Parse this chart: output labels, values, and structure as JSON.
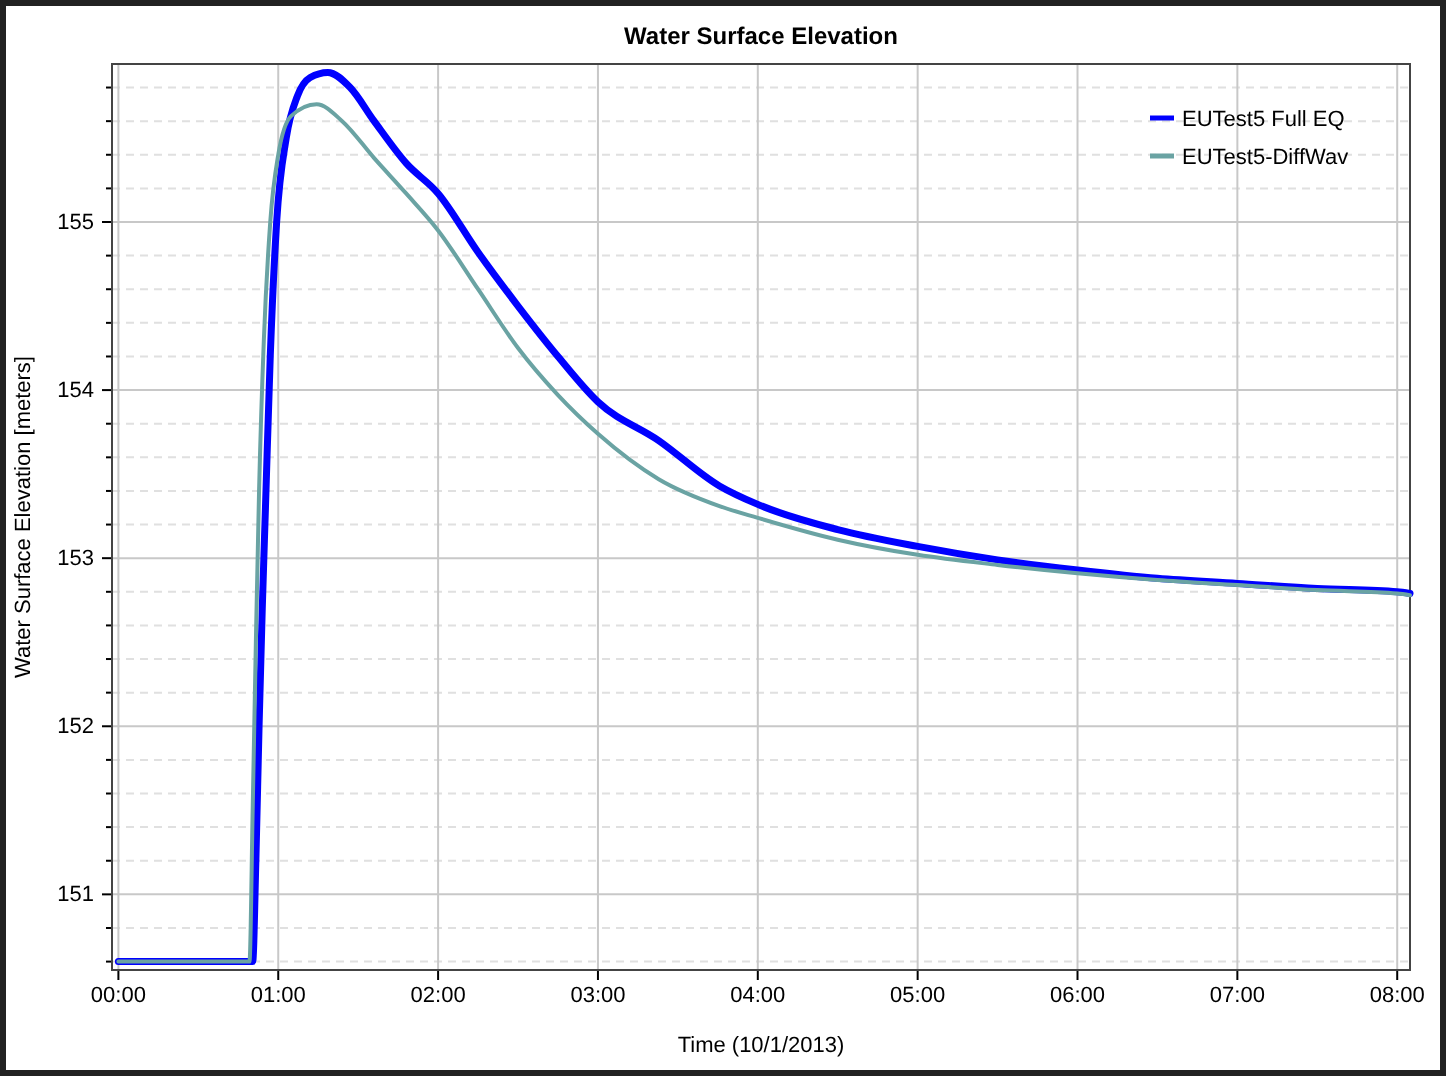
{
  "chart_data": {
    "type": "line",
    "title": "Water Surface Elevation",
    "xlabel": "Time (10/1/2013)",
    "ylabel": "Water Surface Elevation [meters]",
    "xlim": [
      -0.04,
      8.08
    ],
    "ylim": [
      150.55,
      155.94
    ],
    "xticks": [
      {
        "value": 0,
        "label": "00:00"
      },
      {
        "value": 1,
        "label": "01:00"
      },
      {
        "value": 2,
        "label": "02:00"
      },
      {
        "value": 3,
        "label": "03:00"
      },
      {
        "value": 4,
        "label": "04:00"
      },
      {
        "value": 5,
        "label": "05:00"
      },
      {
        "value": 6,
        "label": "06:00"
      },
      {
        "value": 7,
        "label": "07:00"
      },
      {
        "value": 8,
        "label": "08:00"
      }
    ],
    "yticks": [
      {
        "value": 150.6,
        "label": null
      },
      {
        "value": 150.8,
        "label": null
      },
      151,
      {
        "value": 151.2,
        "label": null
      },
      {
        "value": 151.4,
        "label": null
      },
      {
        "value": 151.6,
        "label": null
      },
      {
        "value": 151.8,
        "label": null
      },
      152,
      {
        "value": 152.2,
        "label": null
      },
      {
        "value": 152.4,
        "label": null
      },
      {
        "value": 152.6,
        "label": null
      },
      {
        "value": 152.8,
        "label": null
      },
      153,
      {
        "value": 153.2,
        "label": null
      },
      {
        "value": 153.4,
        "label": null
      },
      {
        "value": 153.6,
        "label": null
      },
      {
        "value": 153.8,
        "label": null
      },
      154,
      {
        "value": 154.2,
        "label": null
      },
      {
        "value": 154.4,
        "label": null
      },
      {
        "value": 154.6,
        "label": null
      },
      {
        "value": 154.8,
        "label": null
      },
      155,
      {
        "value": 155.2,
        "label": null
      },
      {
        "value": 155.4,
        "label": null
      },
      {
        "value": 155.6,
        "label": null
      },
      {
        "value": 155.8,
        "label": null
      }
    ],
    "grid": true,
    "legend": "top right",
    "line_style": "solid",
    "marker": "none",
    "series": [
      {
        "name": "EUTest5 Full EQ",
        "color": "#0000ff",
        "x": [
          0,
          0.84,
          0.86,
          0.88,
          0.9,
          0.92,
          0.95,
          0.99,
          1.05,
          1.12,
          1.2,
          1.31,
          1.45,
          1.6,
          1.8,
          2.0,
          2.25,
          2.5,
          2.75,
          3.0,
          3.38,
          3.76,
          4.0,
          4.5,
          5.0,
          5.5,
          6.0,
          6.5,
          7.0,
          7.5,
          8.0,
          8.08
        ],
        "values": [
          150.6,
          150.6,
          151.2,
          152,
          152.7,
          153.3,
          154.2,
          155.0,
          155.5,
          155.75,
          155.86,
          155.89,
          155.8,
          155.6,
          155.35,
          155.17,
          154.82,
          154.5,
          154.2,
          153.93,
          153.7,
          153.43,
          153.32,
          153.17,
          153.07,
          152.99,
          152.93,
          152.88,
          152.85,
          152.82,
          152.8,
          152.79
        ]
      },
      {
        "name": "EUTest5-DiffWav",
        "color": "#6aa3a3",
        "x": [
          0,
          0.82,
          0.84,
          0.86,
          0.88,
          0.91,
          0.95,
          1.0,
          1.08,
          1.24,
          1.4,
          1.6,
          1.8,
          2.0,
          2.25,
          2.5,
          2.75,
          3.0,
          3.38,
          3.76,
          4.0,
          4.5,
          5.0,
          5.5,
          6.0,
          6.5,
          7.0,
          7.5,
          8.0,
          8.08
        ],
        "values": [
          150.6,
          150.6,
          151.5,
          152.5,
          153.4,
          154.3,
          155.0,
          155.4,
          155.63,
          155.7,
          155.6,
          155.38,
          155.17,
          154.95,
          154.6,
          154.25,
          153.97,
          153.74,
          153.47,
          153.31,
          153.24,
          153.11,
          153.02,
          152.96,
          152.91,
          152.87,
          152.84,
          152.81,
          152.79,
          152.78
        ]
      }
    ]
  }
}
